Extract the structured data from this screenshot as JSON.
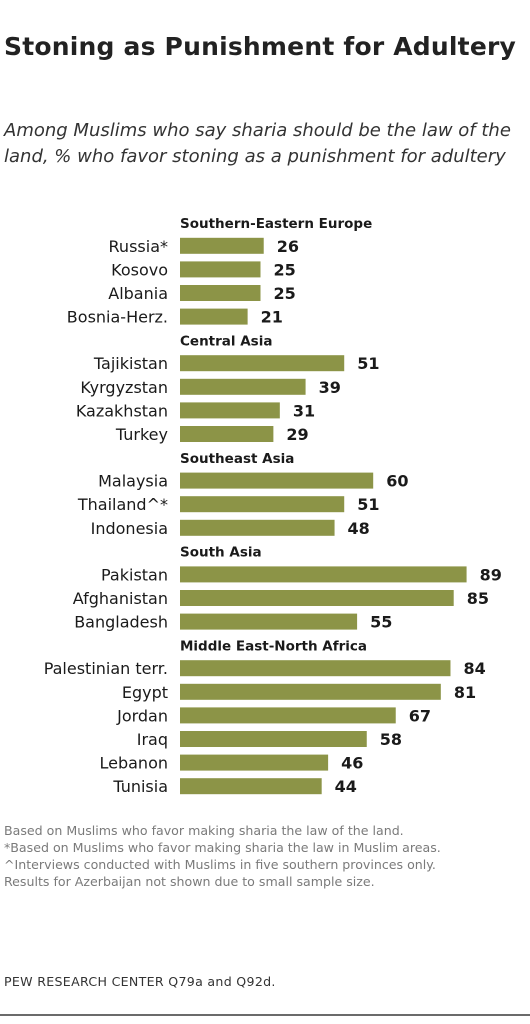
{
  "title": "Stoning as Punishment for Adultery",
  "subtitle": "Among Muslims who say sharia should be the law of the land, % who favor stoning as a punishment for adultery",
  "notes": [
    "Based on Muslims who  favor making sharia the law of the land.",
    "*Based on Muslims who  favor making sharia the law in Muslim areas.",
    "^Interviews conducted with Muslims in five southern provinces only.",
    "Results for Azerbaijan not shown due to small sample size."
  ],
  "source": "PEW RESEARCH  CENTER Q79a and Q92d.",
  "colors": {
    "bar": "#8c9447",
    "label": "#1a1a1a",
    "rule": "#6b6b6b"
  },
  "chart_data": {
    "type": "bar",
    "orientation": "horizontal",
    "xlim": [
      0,
      100
    ],
    "grid": false,
    "groups": [
      {
        "name": "Southern-Eastern  Europe",
        "items": [
          {
            "label": "Russia*",
            "value": 26
          },
          {
            "label": "Kosovo",
            "value": 25
          },
          {
            "label": "Albania",
            "value": 25
          },
          {
            "label": "Bosnia-Herz.",
            "value": 21
          }
        ]
      },
      {
        "name": "Central Asia",
        "items": [
          {
            "label": "Tajikistan",
            "value": 51
          },
          {
            "label": "Kyrgyzstan",
            "value": 39
          },
          {
            "label": "Kazakhstan",
            "value": 31
          },
          {
            "label": "Turkey",
            "value": 29
          }
        ]
      },
      {
        "name": "Southeast Asia",
        "items": [
          {
            "label": "Malaysia",
            "value": 60
          },
          {
            "label": "Thailand^*",
            "value": 51
          },
          {
            "label": "Indonesia",
            "value": 48
          }
        ]
      },
      {
        "name": "South Asia",
        "items": [
          {
            "label": "Pakistan",
            "value": 89
          },
          {
            "label": "Afghanistan",
            "value": 85
          },
          {
            "label": "Bangladesh",
            "value": 55
          }
        ]
      },
      {
        "name": "Middle East-North  Africa",
        "items": [
          {
            "label": "Palestinian terr.",
            "value": 84
          },
          {
            "label": "Egypt",
            "value": 81
          },
          {
            "label": "Jordan",
            "value": 67
          },
          {
            "label": "Iraq",
            "value": 58
          },
          {
            "label": "Lebanon",
            "value": 46
          },
          {
            "label": "Tunisia",
            "value": 44
          }
        ]
      }
    ]
  }
}
